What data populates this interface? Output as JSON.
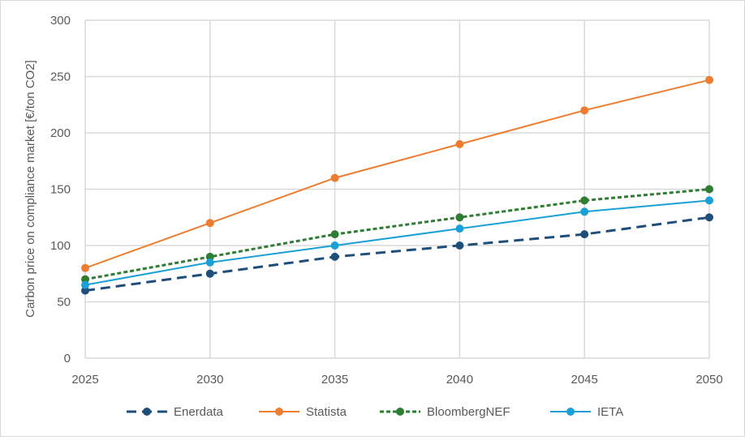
{
  "chart_data": {
    "type": "line",
    "title": "",
    "xlabel": "",
    "ylabel": "Carbon price on compliance market [€/ton CO2]",
    "x": [
      2025,
      2030,
      2035,
      2040,
      2045,
      2050
    ],
    "x_tick_labels": [
      "2025",
      "2030",
      "2035",
      "2040",
      "2045",
      "2050"
    ],
    "y_tick_labels": [
      "0",
      "50",
      "100",
      "150",
      "200",
      "250",
      "300"
    ],
    "ylim": [
      0,
      300
    ],
    "grid": true,
    "legend_position": "bottom",
    "series": [
      {
        "name": "Enerdata",
        "values": [
          60,
          75,
          90,
          100,
          110,
          125
        ],
        "color": "#1f4e79",
        "line_style": "dashed"
      },
      {
        "name": "Statista",
        "values": [
          80,
          120,
          160,
          190,
          220,
          247
        ],
        "color": "#ed7d31",
        "line_style": "solid"
      },
      {
        "name": "BloombergNEF",
        "values": [
          70,
          90,
          110,
          125,
          140,
          150
        ],
        "color": "#2e7d32",
        "line_style": "dotted"
      },
      {
        "name": "IETA",
        "values": [
          65,
          85,
          100,
          115,
          130,
          140
        ],
        "color": "#1a9fd6",
        "line_style": "solid"
      }
    ]
  }
}
